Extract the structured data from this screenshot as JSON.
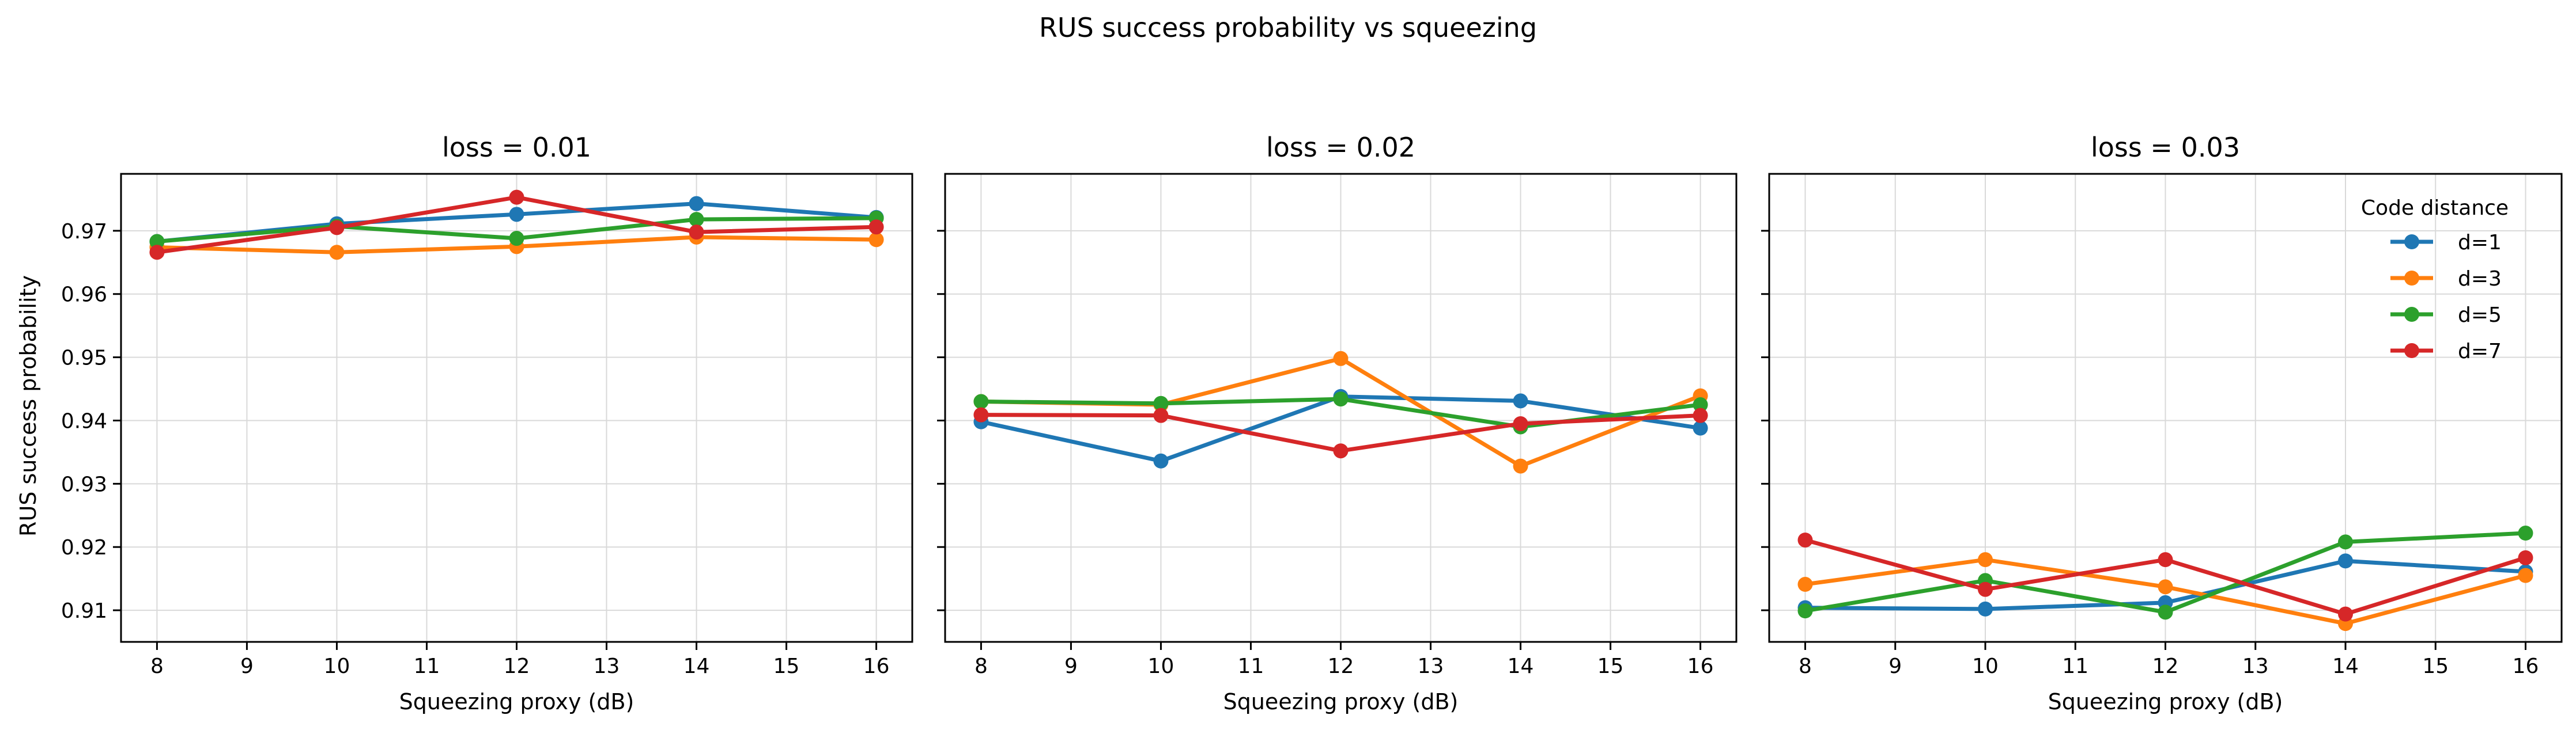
{
  "chart_data": {
    "type": "line",
    "suptitle": "RUS success probability vs squeezing",
    "ylabel": "RUS success probability",
    "xlabel": "Squeezing proxy (dB)",
    "x": [
      8,
      10,
      12,
      14,
      16
    ],
    "xlim": [
      7.6,
      16.4
    ],
    "xticks": [
      8,
      9,
      10,
      11,
      12,
      13,
      14,
      15,
      16
    ],
    "ylim": [
      0.905,
      0.979
    ],
    "yticks": [
      0.91,
      0.92,
      0.93,
      0.94,
      0.95,
      0.96,
      0.97
    ],
    "ytick_labels": [
      "0.91",
      "0.92",
      "0.93",
      "0.94",
      "0.95",
      "0.96",
      "0.97"
    ],
    "shared_y": true,
    "grid": true,
    "legend": {
      "title": "Code distance",
      "location": "upper right of third panel",
      "entries": [
        "d=1",
        "d=3",
        "d=5",
        "d=7"
      ]
    },
    "colors": {
      "d=1": "#1f77b4",
      "d=3": "#ff7f0e",
      "d=5": "#2ca02c",
      "d=7": "#d62728"
    },
    "panels": [
      {
        "title": "loss = 0.01",
        "series": [
          {
            "name": "d=1",
            "values": [
              0.9683,
              0.9711,
              0.9726,
              0.9743,
              0.9721
            ]
          },
          {
            "name": "d=3",
            "values": [
              0.9674,
              0.9666,
              0.9675,
              0.969,
              0.9686
            ]
          },
          {
            "name": "d=5",
            "values": [
              0.9683,
              0.9707,
              0.9688,
              0.9718,
              0.972
            ]
          },
          {
            "name": "d=7",
            "values": [
              0.9666,
              0.9705,
              0.9753,
              0.9698,
              0.9706
            ]
          }
        ]
      },
      {
        "title": "loss = 0.02",
        "series": [
          {
            "name": "d=1",
            "values": [
              0.9398,
              0.9336,
              0.9438,
              0.9431,
              0.9388
            ]
          },
          {
            "name": "d=3",
            "values": [
              0.943,
              0.9425,
              0.9498,
              0.9328,
              0.9439
            ]
          },
          {
            "name": "d=5",
            "values": [
              0.943,
              0.9427,
              0.9434,
              0.939,
              0.9425
            ]
          },
          {
            "name": "d=7",
            "values": [
              0.9409,
              0.9408,
              0.9352,
              0.9395,
              0.9408
            ]
          }
        ]
      },
      {
        "title": "loss = 0.03",
        "series": [
          {
            "name": "d=1",
            "values": [
              0.9104,
              0.9102,
              0.9112,
              0.9178,
              0.9161
            ]
          },
          {
            "name": "d=3",
            "values": [
              0.9141,
              0.918,
              0.9137,
              0.9079,
              0.9155
            ]
          },
          {
            "name": "d=5",
            "values": [
              0.9099,
              0.9147,
              0.9097,
              0.9208,
              0.9222
            ]
          },
          {
            "name": "d=7",
            "values": [
              0.9211,
              0.9133,
              0.918,
              0.9094,
              0.9183
            ]
          }
        ]
      }
    ]
  }
}
